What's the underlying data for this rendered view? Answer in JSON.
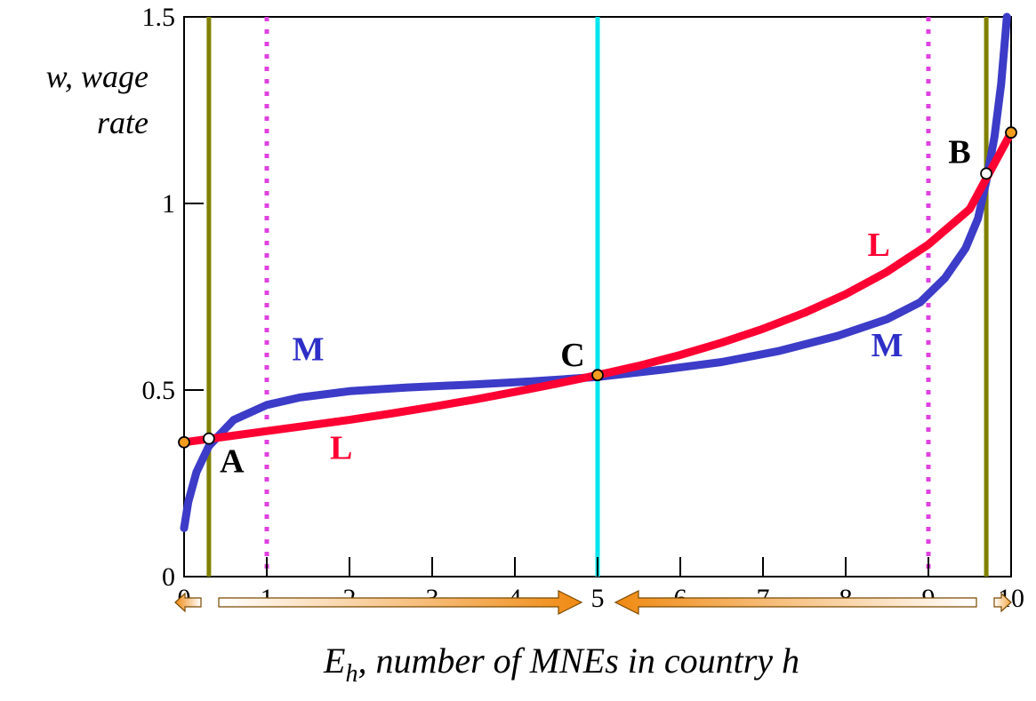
{
  "chart_data": {
    "type": "line",
    "title": "",
    "ylabel_line1": "w, wage",
    "ylabel_line2": "rate",
    "xlabel_main": "E",
    "xlabel_sub": "h",
    "xlabel_rest": ", number of MNEs in country h",
    "xlim": [
      0,
      10
    ],
    "ylim": [
      0,
      1.5
    ],
    "x_ticks": [
      "0",
      "1",
      "2",
      "3",
      "4",
      "5",
      "6",
      "7",
      "8",
      "9",
      "10"
    ],
    "y_ticks": [
      "0",
      "0.5",
      "1",
      "1.5"
    ],
    "series": [
      {
        "name": "M",
        "color": "#3c3cc8",
        "x": [
          0.0,
          0.05,
          0.15,
          0.3,
          0.6,
          1.0,
          1.4,
          2.0,
          2.7,
          3.5,
          4.2,
          5.0,
          5.8,
          6.5,
          7.2,
          7.9,
          8.5,
          8.9,
          9.2,
          9.45,
          9.6,
          9.7,
          9.8,
          9.88,
          9.95
        ],
        "y": [
          0.13,
          0.2,
          0.28,
          0.35,
          0.42,
          0.46,
          0.48,
          0.497,
          0.507,
          0.515,
          0.523,
          0.535,
          0.555,
          0.575,
          0.605,
          0.645,
          0.69,
          0.735,
          0.8,
          0.88,
          0.96,
          1.06,
          1.18,
          1.32,
          1.5
        ]
      },
      {
        "name": "L",
        "color": "#ff0033",
        "x": [
          0.0,
          0.5,
          1.0,
          1.5,
          2.0,
          2.5,
          3.0,
          3.5,
          4.0,
          4.5,
          5.0,
          5.5,
          6.0,
          6.5,
          7.0,
          7.5,
          8.0,
          8.5,
          9.0,
          9.5,
          10.0
        ],
        "y": [
          0.36,
          0.375,
          0.39,
          0.405,
          0.42,
          0.437,
          0.455,
          0.474,
          0.495,
          0.517,
          0.54,
          0.565,
          0.594,
          0.627,
          0.664,
          0.707,
          0.757,
          0.817,
          0.89,
          0.985,
          1.19
        ]
      }
    ],
    "vertical_lines": [
      {
        "x": 0.3,
        "color": "#808000",
        "style": "solid"
      },
      {
        "x": 9.7,
        "color": "#808000",
        "style": "solid"
      },
      {
        "x": 5.0,
        "color": "#00e5ee",
        "style": "solid"
      },
      {
        "x": 1.0,
        "color": "#e040e0",
        "style": "dotted"
      },
      {
        "x": 9.0,
        "color": "#e040e0",
        "style": "dotted"
      }
    ],
    "points": [
      {
        "label": "A",
        "x": 0.3,
        "y": 0.37,
        "fill": "#ffffff"
      },
      {
        "label": "B",
        "x": 9.7,
        "y": 1.08,
        "fill": "#ffffff"
      },
      {
        "label": "C",
        "x": 5.0,
        "y": 0.54,
        "fill": "#f39c1d"
      },
      {
        "label": "",
        "x": 0.0,
        "y": 0.36,
        "fill": "#f39c1d"
      },
      {
        "label": "",
        "x": 10.0,
        "y": 1.19,
        "fill": "#f39c1d"
      }
    ],
    "curve_labels": [
      {
        "text": "M",
        "series": "M",
        "x": 1.5,
        "y": 0.58
      },
      {
        "text": "M",
        "series": "M",
        "x": 8.5,
        "y": 0.59
      },
      {
        "text": "L",
        "series": "L",
        "x": 1.9,
        "y": 0.315
      },
      {
        "text": "L",
        "series": "L",
        "x": 8.4,
        "y": 0.86
      }
    ],
    "grid": false,
    "legend": "none"
  }
}
